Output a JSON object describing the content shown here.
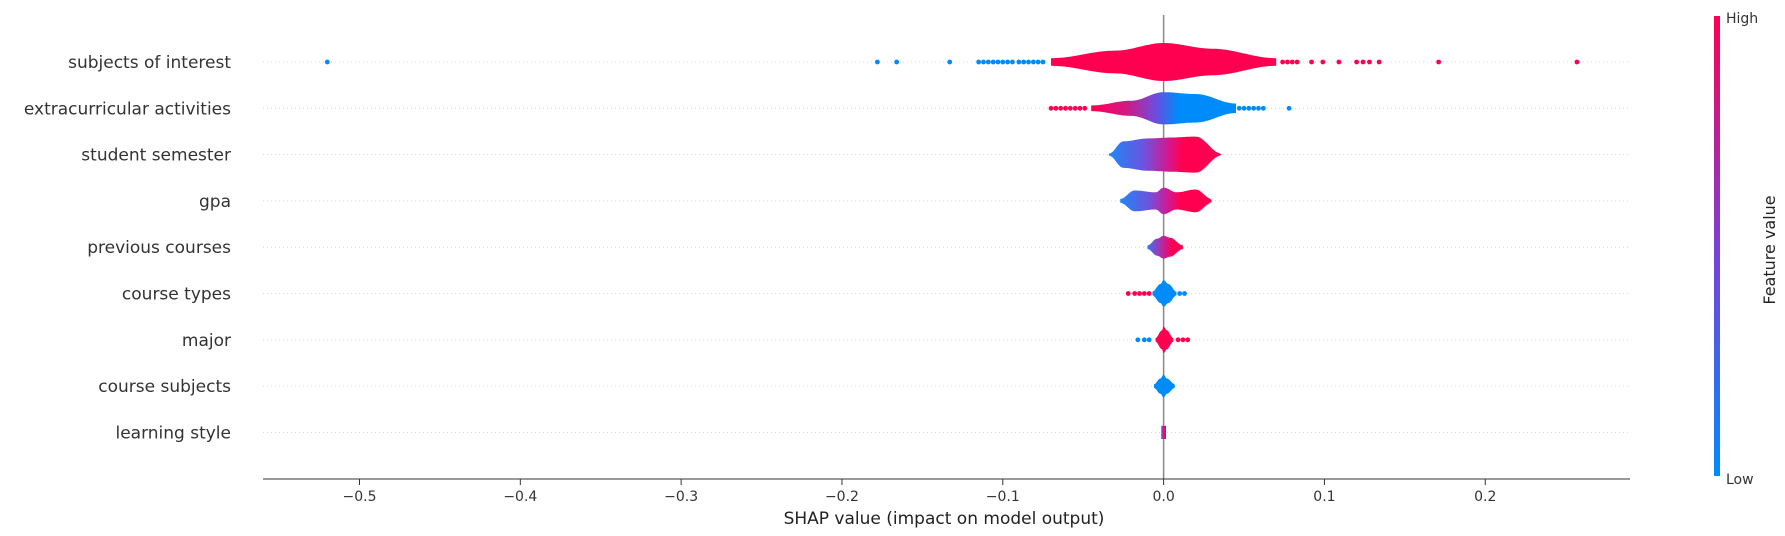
{
  "chart_data": {
    "type": "violin",
    "title": "",
    "xlabel": "SHAP value (impact on model output)",
    "ylabel": "",
    "xlim": [
      -0.56,
      0.29
    ],
    "xticks": [
      -0.5,
      -0.4,
      -0.3,
      -0.2,
      -0.1,
      0.0,
      0.1,
      0.2
    ],
    "xtick_labels": [
      "−0.5",
      "−0.4",
      "−0.3",
      "−0.2",
      "−0.1",
      "0.0",
      "0.1",
      "0.2"
    ],
    "grid": "horizontal dotted per feature",
    "colorbar": {
      "label": "Feature value",
      "high_label": "High",
      "low_label": "Low",
      "high_color": "#ff0051",
      "low_color": "#008bfb"
    },
    "features": [
      {
        "name": "subjects of interest",
        "spread_min": -0.07,
        "spread_max": 0.07,
        "profile": [
          [
            -0.07,
            0.2
          ],
          [
            -0.03,
            0.6
          ],
          [
            0.0,
            1.0
          ],
          [
            0.03,
            0.7
          ],
          [
            0.07,
            0.2
          ]
        ],
        "coloring": "all_high",
        "outliers_low": [
          -0.52,
          -0.178,
          -0.166,
          -0.133,
          -0.115,
          -0.112,
          -0.109,
          -0.106,
          -0.103,
          -0.1,
          -0.097,
          -0.094,
          -0.09,
          -0.087,
          -0.084,
          -0.081,
          -0.078,
          -0.075
        ],
        "outliers_high": [
          0.074,
          0.077,
          0.08,
          0.083,
          0.092,
          0.099,
          0.109,
          0.12,
          0.124,
          0.128,
          0.134,
          0.171,
          0.257
        ]
      },
      {
        "name": "extracurricular activities",
        "spread_min": -0.045,
        "spread_max": 0.045,
        "profile": [
          [
            -0.045,
            0.15
          ],
          [
            -0.02,
            0.4
          ],
          [
            0.0,
            0.85
          ],
          [
            0.02,
            0.75
          ],
          [
            0.045,
            0.25
          ]
        ],
        "coloring": "high_left",
        "outliers_low": [
          -0.07,
          -0.067,
          -0.064,
          -0.061,
          -0.058,
          -0.055,
          -0.052,
          -0.049
        ],
        "outliers_high": [
          0.047,
          0.05,
          0.053,
          0.056,
          0.059,
          0.062,
          0.078
        ]
      },
      {
        "name": "student semester",
        "spread_min": -0.034,
        "spread_max": 0.036,
        "profile": [
          [
            -0.034,
            0.05
          ],
          [
            -0.025,
            0.7
          ],
          [
            -0.01,
            0.85
          ],
          [
            0.005,
            0.9
          ],
          [
            0.02,
            0.95
          ],
          [
            0.036,
            0.05
          ]
        ],
        "coloring": "high_right",
        "outliers_low": [],
        "outliers_high": []
      },
      {
        "name": "gpa",
        "spread_min": -0.027,
        "spread_max": 0.03,
        "profile": [
          [
            -0.027,
            0.1
          ],
          [
            -0.018,
            0.55
          ],
          [
            -0.005,
            0.45
          ],
          [
            0.0,
            0.7
          ],
          [
            0.008,
            0.45
          ],
          [
            0.02,
            0.6
          ],
          [
            0.03,
            0.1
          ]
        ],
        "coloring": "high_right",
        "outliers_low": [],
        "outliers_high": []
      },
      {
        "name": "previous courses",
        "spread_min": -0.01,
        "spread_max": 0.012,
        "profile": [
          [
            -0.01,
            0.1
          ],
          [
            -0.004,
            0.45
          ],
          [
            0.0,
            0.6
          ],
          [
            0.004,
            0.5
          ],
          [
            0.012,
            0.1
          ]
        ],
        "coloring": "mixed",
        "outliers_low": [],
        "outliers_high": []
      },
      {
        "name": "course types",
        "spread_min": -0.007,
        "spread_max": 0.008,
        "profile": [
          [
            -0.007,
            0.1
          ],
          [
            -0.002,
            0.5
          ],
          [
            0.0,
            0.7
          ],
          [
            0.003,
            0.5
          ],
          [
            0.008,
            0.1
          ]
        ],
        "coloring": "all_low",
        "outliers_low": [
          -0.022,
          -0.018,
          -0.015,
          -0.012,
          -0.009
        ],
        "outliers_high": [
          0.01,
          0.013
        ]
      },
      {
        "name": "major",
        "spread_min": -0.005,
        "spread_max": 0.006,
        "profile": [
          [
            -0.005,
            0.1
          ],
          [
            -0.001,
            0.5
          ],
          [
            0.0,
            0.7
          ],
          [
            0.002,
            0.5
          ],
          [
            0.006,
            0.1
          ]
        ],
        "coloring": "all_high",
        "outliers_low": [
          -0.016,
          -0.012,
          -0.009
        ],
        "outliers_high": [
          0.009,
          0.012,
          0.015
        ]
      },
      {
        "name": "course subjects",
        "spread_min": -0.006,
        "spread_max": 0.007,
        "profile": [
          [
            -0.006,
            0.1
          ],
          [
            -0.002,
            0.4
          ],
          [
            0.0,
            0.6
          ],
          [
            0.002,
            0.4
          ],
          [
            0.007,
            0.1
          ]
        ],
        "coloring": "all_low",
        "outliers_low": [],
        "outliers_high": []
      },
      {
        "name": "learning style",
        "spread_min": -0.0015,
        "spread_max": 0.0015,
        "profile": [
          [
            -0.0015,
            0.35
          ],
          [
            0.0,
            0.35
          ],
          [
            0.0015,
            0.35
          ]
        ],
        "coloring": "mixed",
        "outliers_low": [],
        "outliers_high": []
      }
    ]
  }
}
